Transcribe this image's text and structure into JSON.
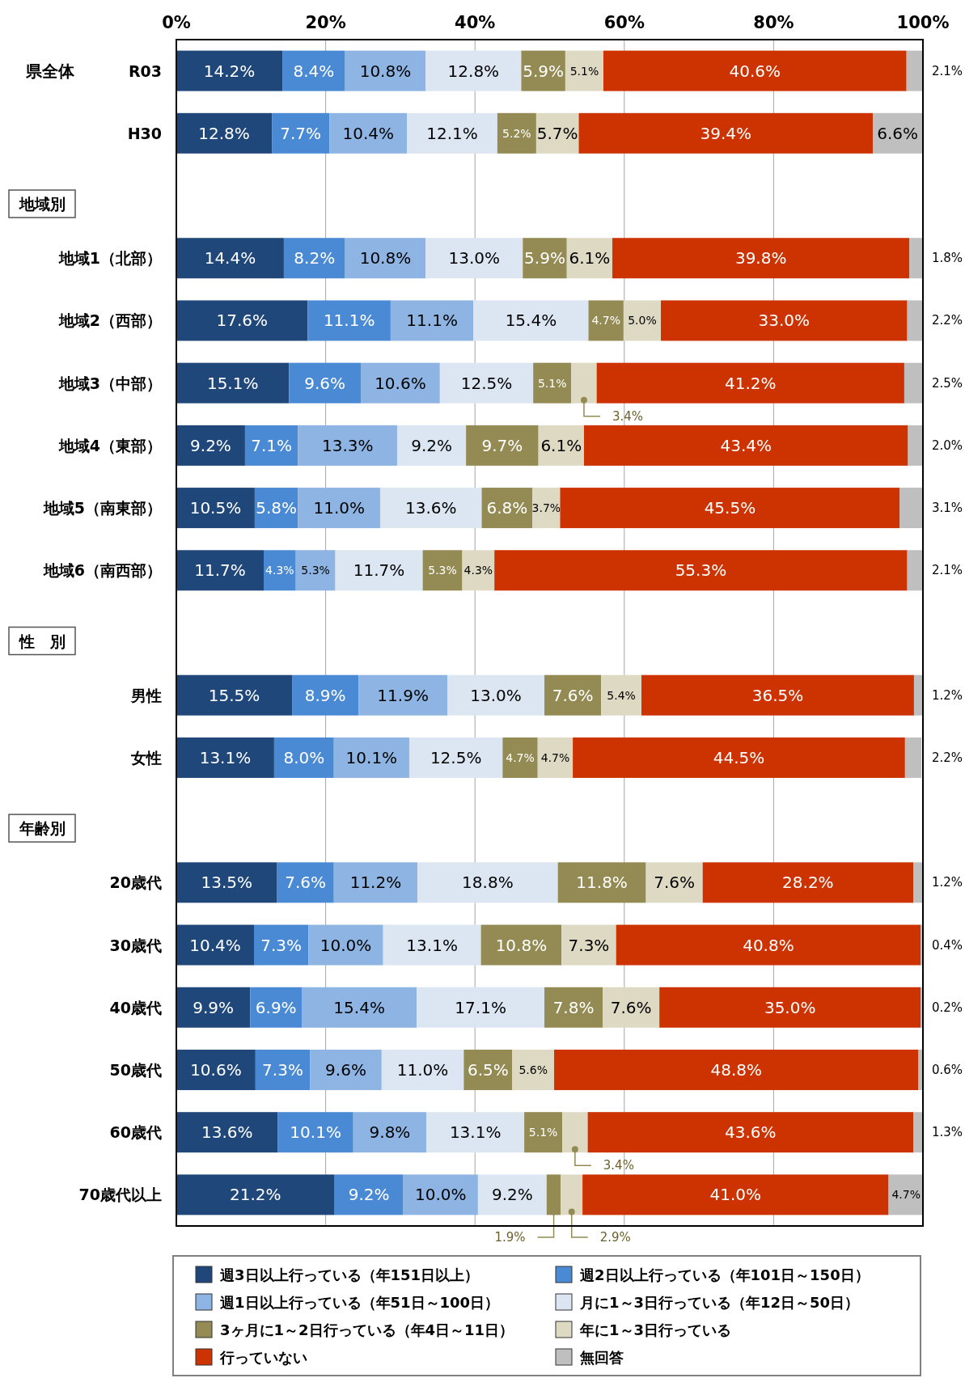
{
  "chart_data": {
    "type": "bar",
    "orientation": "horizontal",
    "stacked": true,
    "grid": "x",
    "legend": "bottom",
    "xlim": [
      0,
      100
    ],
    "xticks": [
      {
        "value": 0,
        "label": "0%"
      },
      {
        "value": 20,
        "label": "20%"
      },
      {
        "value": 40,
        "label": "40%"
      },
      {
        "value": 60,
        "label": "60%"
      },
      {
        "value": 80,
        "label": "80%"
      },
      {
        "value": 100,
        "label": "100%"
      }
    ],
    "annotations": [
      "県全体",
      "地域別",
      "性　別",
      "年齢別"
    ],
    "categories": [
      "R03",
      "H30",
      null,
      "地域1（北部）",
      "地域2（西部）",
      "地域3（中部）",
      "地域4（東部）",
      "地域5（南東部）",
      "地域6（南西部）",
      null,
      "男性",
      "女性",
      null,
      "20歳代",
      "30歳代",
      "40歳代",
      "50歳代",
      "60歳代",
      "70歳代以上"
    ],
    "series": [
      {
        "name": "週3日以上行っている（年151日以上）",
        "color": "#1f477a",
        "values": [
          14.2,
          12.8,
          null,
          14.4,
          17.6,
          15.1,
          9.2,
          10.5,
          11.7,
          null,
          15.5,
          13.1,
          null,
          13.5,
          10.4,
          9.9,
          10.6,
          13.6,
          21.2
        ],
        "value_labels": [
          "14.2%",
          "12.8%",
          null,
          "14.4%",
          "17.6%",
          "15.1%",
          "9.2%",
          "10.5%",
          "11.7%",
          null,
          "15.5%",
          "13.1%",
          null,
          "13.5%",
          "10.4%",
          "9.9%",
          "10.6%",
          "13.6%",
          "21.2%"
        ]
      },
      {
        "name": "週2日以上行っている（年101日～150日）",
        "color": "#4a8ad4",
        "values": [
          8.4,
          7.7,
          null,
          8.2,
          11.1,
          9.6,
          7.1,
          5.8,
          4.3,
          null,
          8.9,
          8.0,
          null,
          7.6,
          7.3,
          6.9,
          7.3,
          10.1,
          9.2
        ],
        "value_labels": [
          "8.4%",
          "7.7%",
          null,
          "8.2%",
          "11.1%",
          "9.6%",
          "7.1%",
          "5.8%",
          "4.3%",
          null,
          "8.9%",
          "8.0%",
          null,
          "7.6%",
          "7.3%",
          "6.9%",
          "7.3%",
          "10.1%",
          "9.2%"
        ]
      },
      {
        "name": "週1日以上行っている（年51日～100日）",
        "color": "#8db4e2",
        "values": [
          10.8,
          10.4,
          null,
          10.8,
          11.1,
          10.6,
          13.3,
          11.0,
          5.3,
          null,
          11.9,
          10.1,
          null,
          11.2,
          10.0,
          15.4,
          9.6,
          9.8,
          10.0
        ],
        "value_labels": [
          "10.8%",
          "10.4%",
          null,
          "10.8%",
          "11.1%",
          "10.6%",
          "13.3%",
          "11.0%",
          "5.3%",
          null,
          "11.9%",
          "10.1%",
          null,
          "11.2%",
          "10.0%",
          "15.4%",
          "9.6%",
          "9.8%",
          "10.0%"
        ]
      },
      {
        "name": "月に1～3日行っている（年12日～50日）",
        "color": "#dce6f2",
        "values": [
          12.8,
          12.1,
          null,
          13.0,
          15.4,
          12.5,
          9.2,
          13.6,
          11.7,
          null,
          13.0,
          12.5,
          null,
          18.8,
          13.1,
          17.1,
          11.0,
          13.1,
          9.2
        ],
        "value_labels": [
          "12.8%",
          "12.1%",
          null,
          "13.0%",
          "15.4%",
          "12.5%",
          "9.2%",
          "13.6%",
          "11.7%",
          null,
          "13.0%",
          "12.5%",
          null,
          "18.8%",
          "13.1%",
          "17.1%",
          "11.0%",
          "13.1%",
          "9.2%"
        ]
      },
      {
        "name": "3ヶ月に1～2日行っている（年4日～11日）",
        "color": "#948a54",
        "values": [
          5.9,
          5.2,
          null,
          5.9,
          4.7,
          5.1,
          9.7,
          6.8,
          5.3,
          null,
          7.6,
          4.7,
          null,
          11.8,
          10.8,
          7.8,
          6.5,
          5.1,
          1.9
        ],
        "value_labels": [
          "5.9%",
          "5.2%",
          null,
          "5.9%",
          "4.7%",
          "5.1%",
          "9.7%",
          "6.8%",
          "5.3%",
          null,
          "7.6%",
          "4.7%",
          null,
          "11.8%",
          "10.8%",
          "7.8%",
          "6.5%",
          "5.1%",
          "1.9%"
        ]
      },
      {
        "name": "年に1～3日行っている",
        "color": "#ddd9c3",
        "values": [
          5.1,
          5.7,
          null,
          6.1,
          5.0,
          3.4,
          6.1,
          3.7,
          4.3,
          null,
          5.4,
          4.7,
          null,
          7.6,
          7.3,
          7.6,
          5.6,
          3.4,
          2.9
        ],
        "value_labels": [
          "5.1%",
          "5.7%",
          null,
          "6.1%",
          "5.0%",
          "3.4%",
          "6.1%",
          "3.7%",
          "4.3%",
          null,
          "5.4%",
          "4.7%",
          null,
          "7.6%",
          "7.3%",
          "7.6%",
          "5.6%",
          "3.4%",
          "2.9%"
        ]
      },
      {
        "name": "行っていない",
        "color": "#cc3300",
        "values": [
          40.6,
          39.4,
          null,
          39.8,
          33.0,
          41.2,
          43.4,
          45.5,
          55.3,
          null,
          36.5,
          44.5,
          null,
          28.2,
          40.8,
          35.0,
          48.8,
          43.6,
          41.0
        ],
        "value_labels": [
          "40.6%",
          "39.4%",
          null,
          "39.8%",
          "33.0%",
          "41.2%",
          "43.4%",
          "45.5%",
          "55.3%",
          null,
          "36.5%",
          "44.5%",
          null,
          "28.2%",
          "40.8%",
          "35.0%",
          "48.8%",
          "43.6%",
          "41.0%"
        ]
      },
      {
        "name": "無回答",
        "color": "#bfbfbf",
        "values": [
          2.1,
          6.6,
          null,
          1.8,
          2.2,
          2.5,
          2.0,
          3.1,
          2.1,
          null,
          1.2,
          2.2,
          null,
          1.2,
          0.4,
          0.2,
          0.6,
          1.3,
          4.7
        ],
        "value_labels": [
          "2.1%",
          "6.6%",
          null,
          "1.8%",
          "2.2%",
          "2.5%",
          "2.0%",
          "3.1%",
          "2.1%",
          null,
          "1.2%",
          "2.2%",
          null,
          "1.2%",
          "0.4%",
          "0.2%",
          "0.6%",
          "1.3%",
          "4.7%"
        ]
      }
    ]
  }
}
